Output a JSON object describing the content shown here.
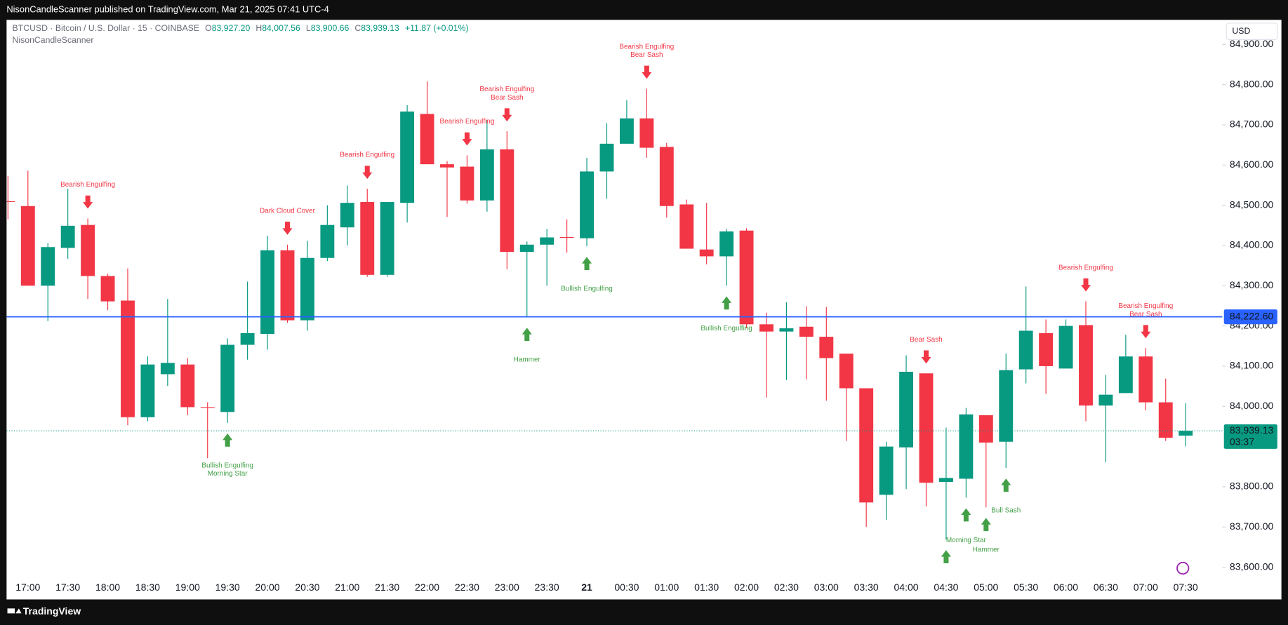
{
  "page": {
    "published": "NisonCandleScanner published on TradingView.com, Mar 21, 2025 07:41 UTC-4",
    "footer": "TradingView"
  },
  "chart_data": {
    "type": "candlestick",
    "symbol": "BTCUSD · Bitcoin / U.S. Dollar · 15 · COINBASE",
    "ohlc_labels": [
      "O",
      "H",
      "L",
      "C"
    ],
    "ohlc_values": [
      "83,927.20",
      "84,007.56",
      "83,900.66",
      "83,939.13"
    ],
    "change": "+11.87 (+0.01%)",
    "indicator": "NisonCandleScanner",
    "currency": "USD",
    "up_color": "#089981",
    "down_color": "#f23645",
    "above_color": "#f23645",
    "below_color": "#43a047",
    "categories": [
      null,
      "17:00",
      null,
      "17:30",
      null,
      "18:00",
      null,
      "18:30",
      null,
      "19:00",
      null,
      "19:30",
      null,
      "20:00",
      null,
      "20:30",
      null,
      "21:00",
      null,
      "21:30",
      null,
      "22:00",
      null,
      "22:30",
      null,
      "23:00",
      null,
      "23:30",
      null,
      "21",
      null,
      "00:30",
      null,
      "01:00",
      null,
      "01:30",
      null,
      "02:00",
      null,
      "02:30",
      null,
      "03:00",
      null,
      "03:30",
      null,
      "04:00",
      null,
      "04:30",
      null,
      "05:00",
      null,
      "05:30",
      null,
      "06:00",
      null,
      "06:30",
      null,
      "07:00",
      null,
      "07:30"
    ],
    "open": [
      84510,
      84498,
      84300,
      84394,
      84451,
      84324,
      84263,
      83973,
      84080,
      84104,
      83998,
      83986,
      84153,
      84180,
      84388,
      84214,
      84369,
      84445,
      84508,
      84327,
      84506,
      84727,
      84602,
      84596,
      84512,
      84639,
      84384,
      84402,
      84421,
      84418,
      84584,
      84653,
      84716,
      84645,
      84502,
      84390,
      84373,
      84437,
      84204,
      84186,
      84198,
      84173,
      84131,
      84045,
      83780,
      83898,
      84082,
      83812,
      83820,
      83978,
      83912,
      84092,
      84182,
      84094,
      84202,
      84002,
      84033,
      84124,
      84010,
      83927.2
    ],
    "high": [
      84573,
      84586,
      84406,
      84541,
      84467,
      84330,
      84343,
      84124,
      84267,
      84120,
      84010,
      84169,
      84310,
      84424,
      84402,
      84412,
      84500,
      84549,
      84541,
      84508,
      84749,
      84808,
      84610,
      84624,
      84712,
      84684,
      84410,
      84441,
      84465,
      84618,
      84704,
      84761,
      84790,
      84655,
      84514,
      84506,
      84441,
      84443,
      84233,
      84259,
      84249,
      84247,
      84131,
      84045,
      83912,
      84127,
      84082,
      83947,
      83996,
      83978,
      84131,
      84298,
      84216,
      84216,
      84261,
      84078,
      84178,
      84145,
      84069,
      84007.56
    ],
    "low": [
      84465,
      84300,
      84212,
      84367,
      84267,
      84239,
      83953,
      83963,
      84051,
      83978,
      83871,
      83959,
      84116,
      84141,
      84208,
      84188,
      84361,
      84400,
      84322,
      84322,
      84457,
      84602,
      84471,
      84504,
      84484,
      84341,
      84222,
      84300,
      84382,
      84398,
      84516,
      84653,
      84618,
      84469,
      84392,
      84353,
      84300,
      84194,
      84022,
      84065,
      84067,
      84014,
      83914,
      83700,
      83718,
      83794,
      83751,
      83669,
      83773,
      83749,
      83847,
      84057,
      84031,
      84094,
      83963,
      83861,
      84033,
      83990,
      83914,
      83900.66
    ],
    "close": [
      84508,
      84300,
      84396,
      84449,
      84324,
      84261,
      83973,
      84104,
      84108,
      83998,
      83996,
      84153,
      84182,
      84388,
      84214,
      84369,
      84451,
      84506,
      84327,
      84508,
      84733,
      84602,
      84594,
      84512,
      84639,
      84384,
      84402,
      84420,
      84420,
      84584,
      84653,
      84716,
      84643,
      84498,
      84392,
      84373,
      84435,
      84204,
      84186,
      84194,
      84173,
      84120,
      84045,
      83761,
      83900,
      84086,
      83810,
      83822,
      83980,
      83910,
      84090,
      84188,
      84100,
      84200,
      84002,
      84029,
      84124,
      84010,
      83922,
      83939.13
    ],
    "patterns_above": [
      null,
      null,
      null,
      null,
      [
        "Bearish Engulfing"
      ],
      null,
      null,
      null,
      null,
      null,
      null,
      null,
      null,
      null,
      [
        "Dark Cloud Cover"
      ],
      null,
      null,
      null,
      [
        "Bearish Engulfing"
      ],
      null,
      null,
      null,
      null,
      [
        "Bearish Engulfing"
      ],
      null,
      [
        "Bearish Engulfing",
        "Bear Sash"
      ],
      null,
      null,
      null,
      null,
      null,
      null,
      [
        "Bearish Engulfing",
        "Bear Sash"
      ],
      null,
      null,
      null,
      null,
      null,
      null,
      null,
      null,
      null,
      null,
      null,
      null,
      null,
      [
        "Bear Sash"
      ],
      null,
      null,
      null,
      null,
      null,
      null,
      null,
      [
        "Bearish Engulfing"
      ],
      null,
      null,
      [
        "Bearish Engulfing",
        "Bear Sash"
      ],
      null,
      null
    ],
    "patterns_below": [
      null,
      null,
      null,
      null,
      null,
      null,
      null,
      null,
      null,
      null,
      null,
      [
        "Bullish Engulfing",
        "Morning Star"
      ],
      null,
      null,
      null,
      null,
      null,
      null,
      null,
      null,
      null,
      null,
      null,
      null,
      null,
      null,
      [
        "Hammer"
      ],
      null,
      null,
      [
        "Bullish Engulfing"
      ],
      null,
      null,
      null,
      null,
      null,
      null,
      [
        "Bullish Engulfing"
      ],
      null,
      null,
      null,
      null,
      null,
      null,
      null,
      null,
      null,
      null,
      [],
      [
        "Morning Star"
      ],
      [
        "Hammer"
      ],
      [
        "Bull Sash"
      ],
      null,
      null,
      null,
      null,
      null,
      null,
      null,
      null,
      null
    ],
    "ylim": [
      83571,
      84961
    ],
    "yticks": [
      {
        "value": 83600,
        "label": "83,600.00"
      },
      {
        "value": 83700,
        "label": "83,700.00"
      },
      {
        "value": 83800,
        "label": "83,800.00"
      },
      {
        "value": 84000,
        "label": "84,000.00"
      },
      {
        "value": 84100,
        "label": "84,100.00"
      },
      {
        "value": 84200,
        "label": "84,200.00"
      },
      {
        "value": 84300,
        "label": "84,300.00"
      },
      {
        "value": 84400,
        "label": "84,400.00"
      },
      {
        "value": 84500,
        "label": "84,500.00"
      },
      {
        "value": 84600,
        "label": "84,600.00"
      },
      {
        "value": 84700,
        "label": "84,700.00"
      },
      {
        "value": 84800,
        "label": "84,800.00"
      },
      {
        "value": 84900,
        "label": "84,900.00"
      }
    ],
    "hline": {
      "value": 84222.6,
      "label": "84,222.60",
      "color": "#2962ff"
    },
    "last_price": {
      "value": 83939.13,
      "label": "83,939.13",
      "countdown": "03:37",
      "color": "#089981"
    }
  }
}
